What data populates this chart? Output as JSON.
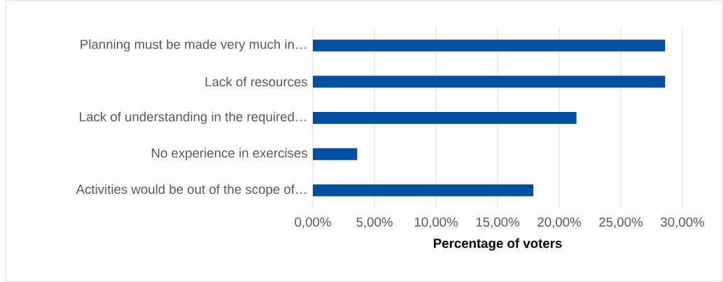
{
  "chart_data": {
    "type": "bar",
    "orientation": "horizontal",
    "xlabel": "Percentage of voters",
    "categories": [
      "Planning must be made very much in…",
      "Lack of resources",
      "Lack of understanding in the required…",
      "No experience in exercises",
      "Activities would be out of the scope of…"
    ],
    "values": [
      28.6,
      28.6,
      21.4,
      3.6,
      17.9
    ],
    "color": "#0050a0",
    "xlim": [
      0,
      30
    ],
    "xticks": [
      {
        "value": 0,
        "label": "0,00%"
      },
      {
        "value": 5,
        "label": "5,00%"
      },
      {
        "value": 10,
        "label": "10,00%"
      },
      {
        "value": 15,
        "label": "15,00%"
      },
      {
        "value": 20,
        "label": "20,00%"
      },
      {
        "value": 25,
        "label": "25,00%"
      },
      {
        "value": 30,
        "label": "30,00%"
      }
    ],
    "grid": "x"
  }
}
